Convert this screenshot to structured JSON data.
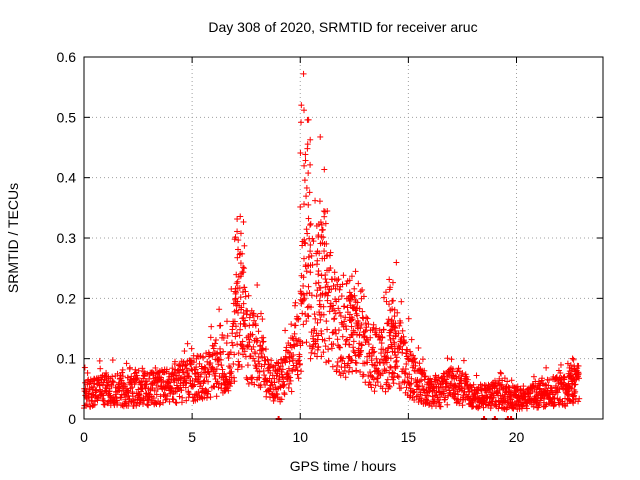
{
  "chart_data": {
    "type": "scatter",
    "title": "Day 308 of 2020, SRMTID for receiver aruc",
    "xlabel": "GPS time / hours",
    "ylabel": "SRMTID / TECUs",
    "xlim": [
      0,
      24
    ],
    "ylim": [
      0,
      0.6
    ],
    "xticks": [
      0,
      5,
      10,
      15,
      20
    ],
    "yticks": [
      0,
      0.1,
      0.2,
      0.3,
      0.4,
      0.5,
      0.6
    ],
    "xtick_labels": [
      "0",
      "5",
      "10",
      "15",
      "20"
    ],
    "ytick_labels": [
      "0",
      "0.1",
      "0.2",
      "0.3",
      "0.4",
      "0.5",
      "0.6"
    ],
    "grid": true,
    "marker": "plus",
    "series_color": "#ff0000",
    "profile": {
      "x": [
        0,
        1,
        2,
        3,
        4,
        5,
        6,
        6.8,
        7.2,
        7.6,
        8,
        8.5,
        9,
        9.6,
        10,
        10.2,
        10.6,
        11,
        11.5,
        12,
        12.5,
        13,
        13.5,
        14,
        14.3,
        14.7,
        15,
        15.5,
        16,
        16.5,
        17,
        17.5,
        18,
        18.5,
        19,
        19.5,
        20,
        20.5,
        21,
        21.5,
        22,
        22.5,
        22.9
      ],
      "y": [
        0.04,
        0.05,
        0.045,
        0.05,
        0.055,
        0.065,
        0.08,
        0.1,
        0.2,
        0.12,
        0.11,
        0.07,
        0.06,
        0.09,
        0.13,
        0.25,
        0.2,
        0.22,
        0.16,
        0.15,
        0.14,
        0.11,
        0.1,
        0.1,
        0.13,
        0.1,
        0.08,
        0.06,
        0.045,
        0.045,
        0.055,
        0.05,
        0.04,
        0.035,
        0.04,
        0.035,
        0.035,
        0.035,
        0.04,
        0.045,
        0.045,
        0.05,
        0.06
      ]
    },
    "peaks": [
      {
        "x": 7.2,
        "y": 0.36
      },
      {
        "x": 10.25,
        "y": 0.58
      },
      {
        "x": 11.0,
        "y": 0.385
      },
      {
        "x": 12.5,
        "y": 0.25
      },
      {
        "x": 14.2,
        "y": 0.24
      },
      {
        "x": 22.6,
        "y": 0.105
      }
    ],
    "zero_points": [
      9.0,
      18.5,
      19.0,
      19.6,
      19.75
    ]
  }
}
